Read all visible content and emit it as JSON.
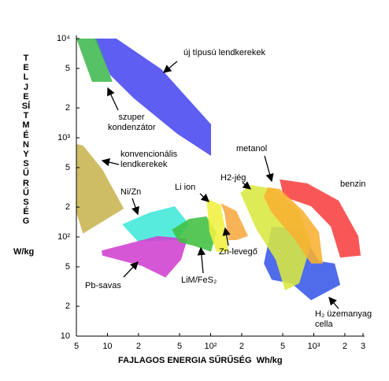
{
  "chart_data": {
    "type": "region",
    "x_label": "FAJLAGOS ENERGIA SŰRŰSÉG",
    "x_unit": "Wh/kg",
    "y_label": "TELJESÍTMÉNYSŰRŰSÉG",
    "y_unit": "W/kg",
    "log_x": true,
    "log_y": true,
    "xlim": [
      5,
      3000
    ],
    "ylim": [
      10,
      10000
    ],
    "xticks": [
      5,
      10,
      {
        "value": 20,
        "label": "2"
      },
      {
        "value": 50,
        "label": "5"
      },
      {
        "value": 100,
        "label": "10²"
      },
      {
        "value": 200,
        "label": "2"
      },
      {
        "value": 500,
        "label": "5"
      },
      {
        "value": 1000,
        "label": "10³"
      },
      {
        "value": 2000,
        "label": "2"
      },
      {
        "value": 3000,
        "label": "3"
      }
    ],
    "yticks": [
      10,
      {
        "value": 20,
        "label": "2"
      },
      {
        "value": 50,
        "label": "5"
      },
      {
        "value": 100,
        "label": "10²"
      },
      {
        "value": 200,
        "label": "2"
      },
      {
        "value": 500,
        "label": "5"
      },
      {
        "value": 1000,
        "label": "10³"
      },
      {
        "value": 2000,
        "label": "2"
      },
      {
        "value": 5000,
        "label": "5"
      },
      {
        "value": 10000,
        "label": "10⁴"
      }
    ],
    "series": [
      {
        "name": "új típusú lendkerekek",
        "color": "#4848f0",
        "x": [
          7.5,
          12.2,
          33.4,
          101,
          101,
          47.5,
          18,
          10.6
        ],
        "y": [
          10000,
          10000,
          4900,
          1365,
          657,
          1096,
          2500,
          4310
        ]
      },
      {
        "name": "szuper\nkondenzátor",
        "color": "#40b850",
        "x": [
          5,
          7.8,
          11.2,
          7.1
        ],
        "y": [
          10000,
          10000,
          3660,
          3660
        ]
      },
      {
        "name": "konvencionális\nlendkerekek",
        "color": "#c8b450",
        "x": [
          5,
          5.8,
          8.9,
          14.4,
          5.8,
          5
        ],
        "y": [
          865,
          834,
          482,
          193,
          108,
          176
        ]
      },
      {
        "name": "Ni/Zn",
        "color": "#40e8d8",
        "x": [
          13.9,
          25.6,
          45,
          61.8,
          47.5,
          19.7
        ],
        "y": [
          134,
          176,
          204,
          134,
          93,
          90
        ]
      },
      {
        "name": "Pb-savas",
        "color": "#d040d0",
        "x": [
          8.8,
          30.6,
          59.6,
          51.8,
          36.5,
          21.5,
          8.9
        ],
        "y": [
          73,
          102,
          96,
          59,
          39,
          51,
          65
        ]
      },
      {
        "name": "LiM/FeS₂",
        "color": "#40c040",
        "x": [
          42,
          61.8,
          91,
          114,
          101,
          67.4,
          50
        ],
        "y": [
          118,
          152,
          161,
          112,
          71,
          82,
          88
        ]
      },
      {
        "name": "Li ion",
        "color": "#f0f040",
        "x": [
          91,
          125,
          136,
          149,
          114,
          97.5
        ],
        "y": [
          245,
          211,
          134,
          71,
          71,
          112
        ]
      },
      {
        "name": "Zn-levegő",
        "color": "#f8a840",
        "x": [
          125,
          177,
          231,
          177,
          149,
          136
        ],
        "y": [
          219,
          183,
          102,
          93,
          93,
          176
        ]
      },
      {
        "name": "benzin",
        "color": "#f84040",
        "x": [
          467,
          862,
          1742,
          2702,
          2851,
          1804,
          1462,
          942,
          509
        ],
        "y": [
          380,
          347,
          232,
          102,
          65,
          62,
          127,
          204,
          254
        ]
      },
      {
        "name": "H₂ üzemanyag\ncella",
        "color": "#3858e8",
        "x": [
          391,
          723,
          1122,
          1596,
          1804,
          942,
          607,
          391,
          328
        ],
        "y": [
          127,
          122,
          57,
          54,
          33,
          23,
          34,
          37,
          54
        ]
      },
      {
        "name": "H2-jég",
        "color": "#d8e840",
        "x": [
          243,
          412,
          723,
          942,
          723,
          527,
          427,
          275,
          194
        ],
        "y": [
          334,
          305,
          183,
          85,
          34,
          29,
          59,
          122,
          278
        ]
      },
      {
        "name": "metanol",
        "color": "#f8b030",
        "x": [
          358,
          467,
          789,
          1122,
          1225,
          942,
          662,
          391,
          328
        ],
        "y": [
          316,
          305,
          183,
          112,
          54,
          54,
          93,
          176,
          254
        ]
      }
    ]
  }
}
